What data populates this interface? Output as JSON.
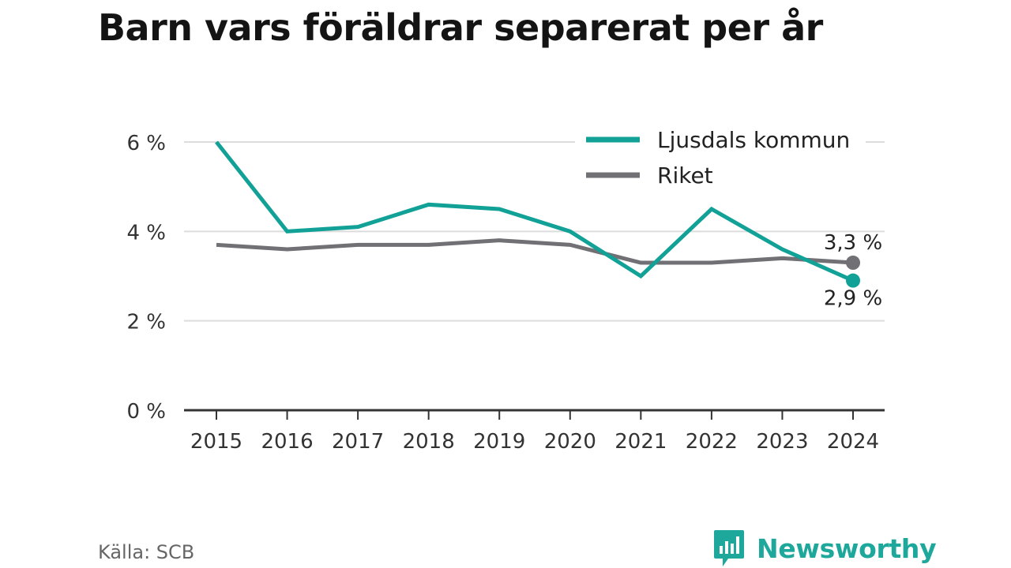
{
  "title": "Barn vars föräldrar separerat per år",
  "source": "Källa: SCB",
  "brand": {
    "name": "Newsworthy",
    "icon": "bar-chart-speech-bubble-icon",
    "color": "#1ea79b"
  },
  "chart_data": {
    "type": "line",
    "x": [
      "2015",
      "2016",
      "2017",
      "2018",
      "2019",
      "2020",
      "2021",
      "2022",
      "2023",
      "2024"
    ],
    "ylim": [
      0,
      6.8
    ],
    "yticks": [
      0,
      2,
      4,
      6
    ],
    "ytick_labels": [
      "0 %",
      "2 %",
      "4 %",
      "6 %"
    ],
    "grid": true,
    "legend": "top-right",
    "series": [
      {
        "name": "Ljusdals kommun",
        "color": "#12a197",
        "values": [
          6.0,
          4.0,
          4.1,
          4.6,
          4.5,
          4.0,
          3.0,
          4.5,
          3.6,
          2.9
        ],
        "end_label": "2,9 %"
      },
      {
        "name": "Riket",
        "color": "#707075",
        "values": [
          3.7,
          3.6,
          3.7,
          3.7,
          3.8,
          3.7,
          3.3,
          3.3,
          3.4,
          3.3
        ],
        "end_label": "3,3 %"
      }
    ]
  }
}
